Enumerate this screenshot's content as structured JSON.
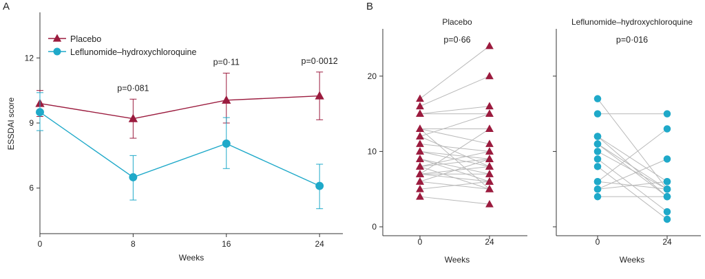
{
  "colors": {
    "placebo": "#9b1b3e",
    "lhcq": "#1fa9c9",
    "pair_line": "#b9b9b9",
    "axis": "#333333"
  },
  "chart_data": [
    {
      "panel_letter": "A",
      "type": "line",
      "xlabel": "Weeks",
      "ylabel": "ESSDAI score",
      "x": [
        0,
        8,
        16,
        24
      ],
      "xlim": [
        0,
        26
      ],
      "ylim": [
        3.9,
        14.1
      ],
      "yticks": [
        6,
        9,
        12
      ],
      "legend_placement": "top-left",
      "series": [
        {
          "name": "Placebo",
          "marker": "triangle",
          "values": [
            9.9,
            9.2,
            10.05,
            10.25
          ],
          "err_low": [
            9.3,
            8.3,
            9.0,
            9.15
          ],
          "err_high": [
            10.5,
            10.1,
            11.3,
            11.35
          ]
        },
        {
          "name": "Leflunomide–hydroxychloroquine",
          "marker": "circle",
          "values": [
            9.5,
            6.5,
            8.05,
            6.1
          ],
          "err_low": [
            8.65,
            5.45,
            6.9,
            5.05
          ],
          "err_high": [
            10.4,
            7.5,
            9.25,
            7.1
          ]
        }
      ],
      "annotations": [
        {
          "x": 8,
          "text": "p=0·081"
        },
        {
          "x": 16,
          "text": "p=0·11"
        },
        {
          "x": 24,
          "text": "p=0·0012"
        }
      ]
    },
    {
      "panel_letter": "B",
      "type": "line",
      "title": "Placebo",
      "p_value": "p=0·66",
      "xlabel": "Weeks",
      "categories": [
        "0",
        "24"
      ],
      "ylim": [
        -1,
        26
      ],
      "yticks": [
        0,
        10,
        20
      ],
      "marker": "triangle",
      "pairs": [
        [
          17,
          24
        ],
        [
          16,
          20
        ],
        [
          15,
          16
        ],
        [
          15,
          15
        ],
        [
          13,
          13
        ],
        [
          13,
          11
        ],
        [
          12,
          15
        ],
        [
          11,
          10
        ],
        [
          10,
          9
        ],
        [
          10,
          8
        ],
        [
          9,
          7
        ],
        [
          8,
          10
        ],
        [
          8,
          9
        ],
        [
          7,
          8
        ],
        [
          7,
          7
        ],
        [
          7,
          6
        ],
        [
          6,
          5
        ],
        [
          5,
          6
        ],
        [
          4,
          3
        ],
        [
          13,
          5
        ],
        [
          12,
          8
        ],
        [
          9,
          6
        ],
        [
          6,
          9
        ],
        [
          8,
          5
        ],
        [
          7,
          13
        ]
      ]
    },
    {
      "type": "line",
      "title": "Leflunomide–hydroxychloroquine",
      "p_value": "p=0·016",
      "xlabel": "Weeks",
      "categories": [
        "0",
        "24"
      ],
      "ylim": [
        -1,
        26
      ],
      "yticks": [
        0,
        10,
        20
      ],
      "marker": "circle",
      "pairs": [
        [
          17,
          5
        ],
        [
          15,
          15
        ],
        [
          12,
          6
        ],
        [
          11,
          4
        ],
        [
          10,
          5
        ],
        [
          9,
          2
        ],
        [
          8,
          1
        ],
        [
          6,
          13
        ],
        [
          5,
          9
        ],
        [
          4,
          4
        ],
        [
          11,
          5
        ],
        [
          12,
          4
        ],
        [
          6,
          5
        ],
        [
          5,
          6
        ]
      ]
    }
  ]
}
